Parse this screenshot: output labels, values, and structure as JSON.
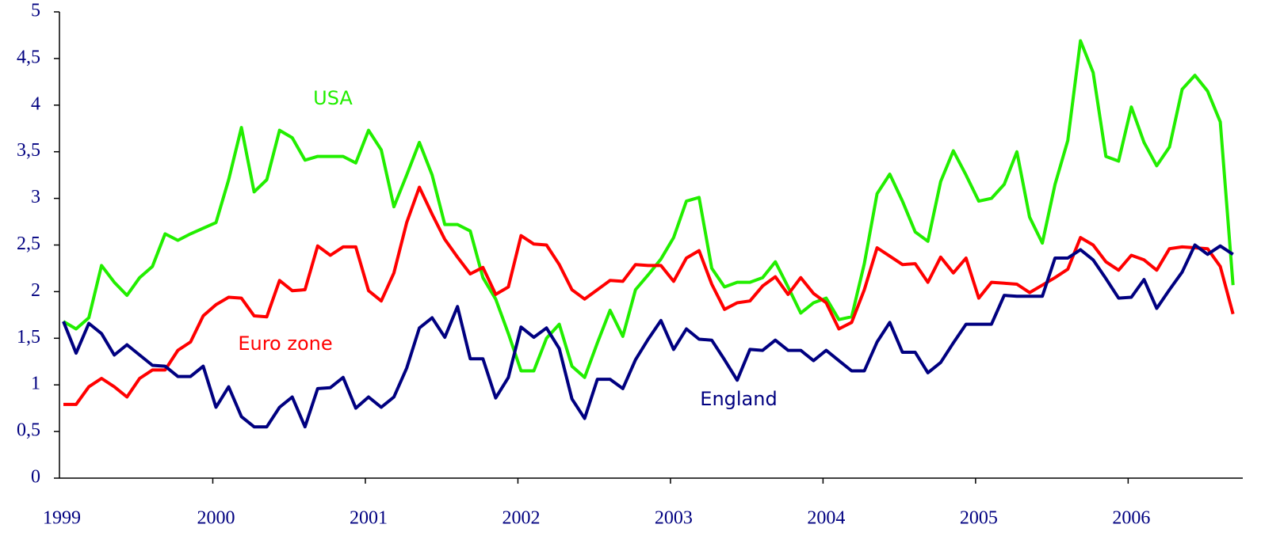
{
  "chart_data": {
    "type": "line",
    "categories": [
      "1999",
      null,
      null,
      null,
      null,
      null,
      null,
      null,
      null,
      null,
      null,
      null,
      "2000",
      null,
      null,
      null,
      null,
      null,
      null,
      null,
      null,
      null,
      null,
      null,
      "2001",
      null,
      null,
      null,
      null,
      null,
      null,
      null,
      null,
      null,
      null,
      null,
      "2002",
      null,
      null,
      null,
      null,
      null,
      null,
      null,
      null,
      null,
      null,
      null,
      "2003",
      null,
      null,
      null,
      null,
      null,
      null,
      null,
      null,
      null,
      null,
      null,
      "2004",
      null,
      null,
      null,
      null,
      null,
      null,
      null,
      null,
      null,
      null,
      null,
      "2005",
      null,
      null,
      null,
      null,
      null,
      null,
      null,
      null,
      null,
      null,
      null,
      "2006",
      null,
      null,
      null,
      null,
      null,
      null,
      null,
      null
    ],
    "series": [
      {
        "name": "USA",
        "color": "#22ee00",
        "values": [
          1.68,
          1.6,
          1.72,
          2.28,
          2.1,
          1.96,
          2.15,
          2.27,
          2.62,
          2.55,
          2.62,
          2.68,
          2.74,
          3.2,
          3.76,
          3.07,
          3.2,
          3.73,
          3.65,
          3.41,
          3.45,
          3.45,
          3.45,
          3.38,
          3.73,
          3.52,
          2.91,
          3.25,
          3.6,
          3.25,
          2.72,
          2.72,
          2.65,
          2.15,
          1.92,
          1.55,
          1.15,
          1.15,
          1.5,
          1.65,
          1.2,
          1.08,
          1.45,
          1.8,
          1.52,
          2.02,
          2.18,
          2.35,
          2.58,
          2.97,
          3.01,
          2.25,
          2.05,
          2.1,
          2.1,
          2.15,
          2.32,
          2.05,
          1.77,
          1.88,
          1.93,
          1.7,
          1.73,
          2.3,
          3.05,
          3.26,
          2.97,
          2.64,
          2.54,
          3.18,
          3.51,
          3.25,
          2.97,
          3.0,
          3.15,
          3.5,
          2.8,
          2.52,
          3.15,
          3.62,
          4.69,
          4.35,
          3.45,
          3.4,
          3.98,
          3.6,
          3.35,
          3.55,
          4.17,
          4.32,
          4.15,
          3.82,
          2.07
        ]
      },
      {
        "name": "Euro zone",
        "color": "#ff0000",
        "values": [
          0.79,
          0.79,
          0.98,
          1.07,
          0.98,
          0.87,
          1.07,
          1.16,
          1.16,
          1.37,
          1.46,
          1.74,
          1.86,
          1.94,
          1.93,
          1.74,
          1.73,
          2.12,
          2.01,
          2.02,
          2.49,
          2.39,
          2.48,
          2.48,
          2.01,
          1.9,
          2.2,
          2.74,
          3.12,
          2.83,
          2.56,
          2.37,
          2.19,
          2.26,
          1.97,
          2.05,
          2.6,
          2.51,
          2.5,
          2.29,
          2.02,
          1.92,
          2.02,
          2.12,
          2.11,
          2.29,
          2.28,
          2.28,
          2.11,
          2.36,
          2.44,
          2.08,
          1.81,
          1.88,
          1.9,
          2.06,
          2.16,
          1.97,
          2.15,
          1.98,
          1.88,
          1.6,
          1.67,
          2.02,
          2.47,
          2.38,
          2.29,
          2.3,
          2.1,
          2.37,
          2.2,
          2.36,
          1.93,
          2.1,
          2.09,
          2.08,
          1.99,
          2.07,
          2.15,
          2.24,
          2.58,
          2.5,
          2.32,
          2.23,
          2.39,
          2.34,
          2.23,
          2.46,
          2.48,
          2.47,
          2.46,
          2.27,
          1.76
        ]
      },
      {
        "name": "England",
        "color": "#000080",
        "values": [
          1.68,
          1.34,
          1.66,
          1.55,
          1.32,
          1.43,
          1.32,
          1.21,
          1.2,
          1.09,
          1.09,
          1.2,
          0.76,
          0.98,
          0.66,
          0.55,
          0.55,
          0.76,
          0.87,
          0.55,
          0.96,
          0.97,
          1.08,
          0.75,
          0.87,
          0.76,
          0.87,
          1.18,
          1.61,
          1.72,
          1.51,
          1.84,
          1.28,
          1.28,
          0.86,
          1.08,
          1.62,
          1.51,
          1.61,
          1.39,
          0.85,
          0.64,
          1.06,
          1.06,
          0.96,
          1.27,
          1.49,
          1.69,
          1.38,
          1.6,
          1.49,
          1.48,
          1.27,
          1.05,
          1.38,
          1.37,
          1.48,
          1.37,
          1.37,
          1.26,
          1.37,
          1.26,
          1.15,
          1.15,
          1.46,
          1.67,
          1.35,
          1.35,
          1.13,
          1.24,
          1.45,
          1.65,
          1.65,
          1.65,
          1.96,
          1.95,
          1.95,
          1.95,
          2.36,
          2.36,
          2.45,
          2.34,
          2.14,
          1.93,
          1.94,
          2.13,
          1.82,
          2.02,
          2.21,
          2.5,
          2.4,
          2.49,
          2.4
        ]
      }
    ],
    "ylim": [
      0,
      5
    ],
    "yticks": [
      0,
      {
        "value": 0.5,
        "label": "0,5"
      },
      1,
      {
        "value": 1.5,
        "label": "1,5"
      },
      2,
      {
        "value": 2.5,
        "label": "2,5"
      },
      3,
      {
        "value": 3.5,
        "label": "3,5"
      },
      4,
      {
        "value": 4.5,
        "label": "4,5"
      },
      5
    ],
    "grid": false
  }
}
